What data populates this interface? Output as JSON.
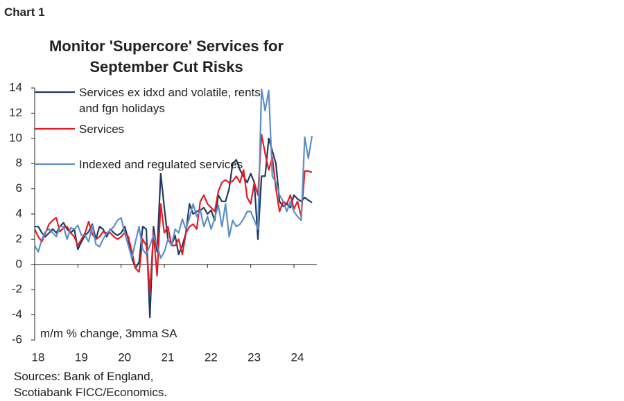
{
  "chart_data": {
    "type": "line",
    "label": "Chart 1",
    "title": "Monitor 'Supercore' Services for September Cut Risks",
    "annotation": "m/m % change, 3mma SA",
    "source": "Sources: Bank of England, Scotiabank FICC/Economics.",
    "x": [
      2018,
      2018.083,
      2018.167,
      2018.25,
      2018.333,
      2018.417,
      2018.5,
      2018.583,
      2018.667,
      2018.75,
      2018.833,
      2018.917,
      2019,
      2019.083,
      2019.167,
      2019.25,
      2019.333,
      2019.417,
      2019.5,
      2019.583,
      2019.667,
      2019.75,
      2019.833,
      2019.917,
      2020,
      2020.083,
      2020.167,
      2020.25,
      2020.333,
      2020.417,
      2020.5,
      2020.583,
      2020.667,
      2020.75,
      2020.833,
      2020.917,
      2021,
      2021.083,
      2021.167,
      2021.25,
      2021.333,
      2021.417,
      2021.5,
      2021.583,
      2021.667,
      2021.75,
      2021.833,
      2021.917,
      2022,
      2022.083,
      2022.167,
      2022.25,
      2022.333,
      2022.417,
      2022.5,
      2022.583,
      2022.667,
      2022.75,
      2022.833,
      2022.917,
      2023,
      2023.083,
      2023.167,
      2023.25,
      2023.333,
      2023.417,
      2023.5,
      2023.583,
      2023.667,
      2023.75,
      2023.833,
      2023.917,
      2024,
      2024.083,
      2024.167,
      2024.25,
      2024.333,
      2024.417
    ],
    "series": [
      {
        "name": "Services ex idxd and volatile, rents and fgn holidays",
        "color": "#1f3a5f",
        "values": [
          3,
          3,
          2.5,
          2.2,
          2.5,
          2.8,
          2.5,
          3,
          3.3,
          2.8,
          2.5,
          2.8,
          1.2,
          1.8,
          2.3,
          2.6,
          3.2,
          2,
          3,
          2.8,
          2.2,
          2.8,
          2.5,
          2.3,
          2.5,
          3,
          2,
          0.5,
          -0.3,
          0.2,
          3,
          2.8,
          -4.2,
          3,
          1,
          7.2,
          4.5,
          2,
          1.5,
          2.3,
          0.8,
          1.5,
          2.5,
          4.8,
          4,
          4.2,
          4.3,
          4.5,
          4,
          4.3,
          3.5,
          5.5,
          5,
          5,
          6,
          8,
          8.3,
          7.5,
          7,
          6.5,
          7.2,
          6.5,
          2,
          7,
          7,
          10,
          9,
          8,
          5,
          4.6,
          4.8,
          4.5,
          5.5,
          5.2,
          5,
          5.3,
          5.1,
          4.9
        ]
      },
      {
        "name": "Services",
        "color": "#e31b23",
        "values": [
          2.8,
          2.2,
          1.8,
          2.5,
          3.2,
          3.5,
          3.7,
          2.6,
          2.9,
          3,
          2.5,
          2.2,
          1.5,
          2,
          2.5,
          3.4,
          2.4,
          2,
          2.2,
          2.6,
          2.5,
          2.5,
          2.2,
          2,
          2.2,
          2.5,
          2.2,
          1,
          -0.3,
          -0.6,
          2,
          1.5,
          -2.2,
          2.5,
          -0.9,
          4.8,
          2.5,
          3,
          1.5,
          1.5,
          2,
          0.8,
          2.5,
          3,
          3.2,
          2.8,
          5,
          5.5,
          4.8,
          4.5,
          4.2,
          5.8,
          6.5,
          6.7,
          6.5,
          6.6,
          7,
          6.5,
          7.5,
          5.3,
          4.8,
          6.5,
          5.5,
          10.3,
          8.8,
          7.5,
          8.5,
          6,
          4.2,
          5,
          4.8,
          5.5,
          4.4,
          5,
          3.8,
          7.4,
          7.4,
          7.3
        ]
      },
      {
        "name": "Indexed and regulated services",
        "color": "#5b8fc9",
        "values": [
          1.5,
          1,
          2,
          2.6,
          2.8,
          2.5,
          2.2,
          3,
          3,
          2,
          2.9,
          2.8,
          3.1,
          2.3,
          2.3,
          1.8,
          3.1,
          1.6,
          1.4,
          2,
          2.5,
          2.7,
          3,
          3.5,
          3.7,
          2.5,
          1.5,
          0.5,
          1.8,
          3,
          1.2,
          0.8,
          1.5,
          2.3,
          1.5,
          0.5,
          1,
          2,
          1.5,
          2.8,
          2.5,
          3.6,
          2.8,
          3.7,
          4.8,
          3.8,
          4.3,
          3,
          3.8,
          2.8,
          3.7,
          4.7,
          3,
          4.8,
          2.2,
          3.5,
          3,
          3.2,
          3.6,
          4.2,
          4.2,
          3.5,
          2.8,
          13.9,
          12.2,
          13.8,
          7,
          6.5,
          5.5,
          5,
          4.2,
          5,
          4.2,
          3.8,
          3.5,
          10.1,
          8.4,
          10.2
        ]
      }
    ],
    "xlim": [
      2018,
      2024.53
    ],
    "xticks": [
      {
        "value": 2018,
        "label": "18"
      },
      {
        "value": 2019,
        "label": "19"
      },
      {
        "value": 2020,
        "label": "20"
      },
      {
        "value": 2021,
        "label": "21"
      },
      {
        "value": 2022,
        "label": "22"
      },
      {
        "value": 2023,
        "label": "23"
      },
      {
        "value": 2024,
        "label": "24"
      }
    ],
    "ylim": [
      -6,
      14
    ],
    "yticks": [
      -6,
      -4,
      -2,
      0,
      2,
      4,
      6,
      8,
      10,
      12,
      14
    ]
  }
}
